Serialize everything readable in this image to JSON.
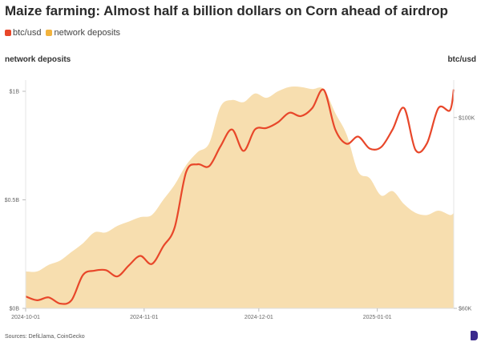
{
  "title": "Maize farming: Almost half a billion dollars on Corn ahead of airdrop",
  "legend": [
    {
      "label": "btc/usd",
      "color": "#e8472a"
    },
    {
      "label": "network deposits",
      "color": "#f2b33d"
    }
  ],
  "source": "Sources: DefiLlama, CoinGecko",
  "chart_data": {
    "type": "line+area",
    "title": "Maize farming: Almost half a billion dollars on Corn ahead of airdrop",
    "left_axis": {
      "label": "network deposits",
      "ticks": [
        "$0B",
        "$0.5B",
        "$1B"
      ],
      "tick_values": [
        0,
        0.5,
        1
      ],
      "range": [
        0,
        1.0
      ]
    },
    "right_axis": {
      "label": "btc/usd",
      "ticks": [
        "$60K",
        "$100K"
      ],
      "tick_values": [
        60,
        100
      ],
      "range": [
        60,
        105.5
      ],
      "unit": "thousand USD"
    },
    "x_axis": {
      "ticks": [
        "2024-10-01",
        "2024-11-01",
        "2024-12-01",
        "2025-01-01"
      ]
    },
    "x": [
      "2024-10-01",
      "2024-10-04",
      "2024-10-07",
      "2024-10-10",
      "2024-10-13",
      "2024-10-16",
      "2024-10-19",
      "2024-10-22",
      "2024-10-25",
      "2024-10-28",
      "2024-10-31",
      "2024-11-03",
      "2024-11-06",
      "2024-11-09",
      "2024-11-12",
      "2024-11-15",
      "2024-11-18",
      "2024-11-21",
      "2024-11-24",
      "2024-11-27",
      "2024-11-30",
      "2024-12-03",
      "2024-12-06",
      "2024-12-09",
      "2024-12-12",
      "2024-12-15",
      "2024-12-18",
      "2024-12-21",
      "2024-12-24",
      "2024-12-27",
      "2024-12-30",
      "2025-01-02",
      "2025-01-05",
      "2025-01-08",
      "2025-01-11",
      "2025-01-14",
      "2025-01-17",
      "2025-01-20",
      "2025-01-21"
    ],
    "series": [
      {
        "name": "network deposits",
        "axis": "left",
        "type": "area",
        "color": "#f7deaf",
        "values": [
          0.17,
          0.17,
          0.2,
          0.22,
          0.26,
          0.3,
          0.35,
          0.35,
          0.38,
          0.4,
          0.42,
          0.43,
          0.5,
          0.57,
          0.66,
          0.72,
          0.76,
          0.93,
          0.96,
          0.95,
          0.99,
          0.97,
          1.0,
          1.02,
          1.02,
          1.01,
          1.01,
          0.9,
          0.8,
          0.63,
          0.6,
          0.52,
          0.54,
          0.48,
          0.44,
          0.43,
          0.45,
          0.43,
          0.44
        ]
      },
      {
        "name": "btc/usd",
        "axis": "right",
        "type": "line",
        "color": "#e8472a",
        "values": [
          62.5,
          61.7,
          62.3,
          61.0,
          61.7,
          67.0,
          67.9,
          68.0,
          66.7,
          69.0,
          71.0,
          69.3,
          73.0,
          77.0,
          88.6,
          90.2,
          89.8,
          94.0,
          97.5,
          93.0,
          97.5,
          97.8,
          99.0,
          101.0,
          100.3,
          102.0,
          105.8,
          97.5,
          94.5,
          96.0,
          93.5,
          93.8,
          97.5,
          102.0,
          93.2,
          94.6,
          102.0,
          101.5,
          105.9
        ]
      }
    ],
    "grid": false
  }
}
